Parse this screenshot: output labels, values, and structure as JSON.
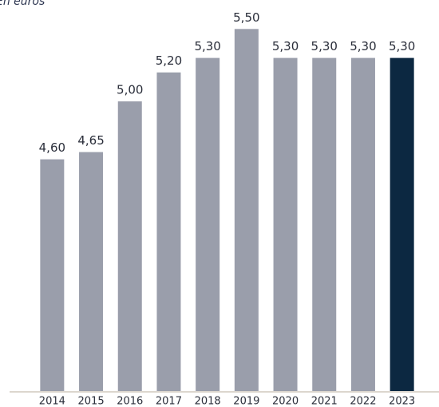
{
  "chart_data": {
    "type": "bar",
    "subtitle": "En euros",
    "categories": [
      "2014",
      "2015",
      "2016",
      "2017",
      "2018",
      "2019",
      "2020",
      "2021",
      "2022",
      "2023"
    ],
    "values": [
      4.6,
      4.65,
      5.0,
      5.2,
      5.3,
      5.5,
      5.3,
      5.3,
      5.3,
      5.3
    ],
    "value_labels": [
      "4,60",
      "4,65",
      "5,00",
      "5,20",
      "5,30",
      "5,50",
      "5,30",
      "5,30",
      "5,30",
      "5,30"
    ],
    "colors": [
      "#9a9eab",
      "#9a9eab",
      "#9a9eab",
      "#9a9eab",
      "#9a9eab",
      "#9a9eab",
      "#9a9eab",
      "#9a9eab",
      "#9a9eab",
      "#0c2841"
    ],
    "ylim": [
      3,
      5.7
    ]
  }
}
